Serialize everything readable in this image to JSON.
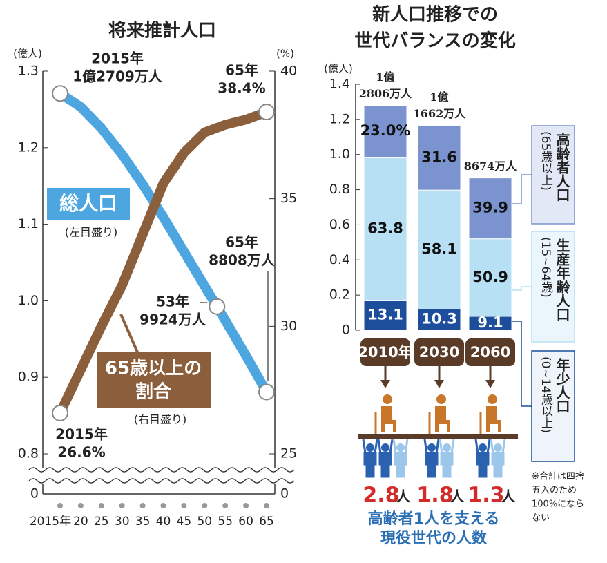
{
  "chart_data": [
    {
      "type": "line",
      "title": "将来推計人口",
      "y_unit": "(億人)",
      "y2_unit": "(%)",
      "xlim": [
        2015,
        2065
      ],
      "xticks": [
        {
          "value": 2015,
          "label": "2015年"
        },
        {
          "value": 2020,
          "label": "20"
        },
        {
          "value": 2025,
          "label": "25"
        },
        {
          "value": 2030,
          "label": "30"
        },
        {
          "value": 2035,
          "label": "35"
        },
        {
          "value": 2040,
          "label": "40"
        },
        {
          "value": 2045,
          "label": "45"
        },
        {
          "value": 2050,
          "label": "50"
        },
        {
          "value": 2055,
          "label": "55"
        },
        {
          "value": 2060,
          "label": "60"
        },
        {
          "value": 2065,
          "label": "65"
        }
      ],
      "ylim": [
        0.8,
        1.3
      ],
      "yticks": [
        0.8,
        0.9,
        {
          "value": 1,
          "label": "1.0"
        },
        1.1,
        1.2,
        1.3
      ],
      "y2lim": [
        25,
        40
      ],
      "y2ticks": [
        25,
        30,
        35,
        40
      ],
      "break_ticks": {
        "y": 0,
        "y2": 0
      },
      "series": [
        {
          "name": "総人口",
          "axis_note": "(左目盛り)",
          "color": "#4ea6e0",
          "x": [
            2015,
            2020,
            2025,
            2030,
            2035,
            2040,
            2045,
            2050,
            2053,
            2055,
            2060,
            2065
          ],
          "values": [
            1.2709,
            1.2532,
            1.2254,
            1.1913,
            1.1522,
            1.1092,
            1.0642,
            1.0192,
            0.9924,
            0.9744,
            0.9284,
            0.8808
          ]
        },
        {
          "name_lines": [
            "65歳以上の",
            "割合"
          ],
          "axis_note": "(右目盛り)",
          "axis": "y2",
          "color": "#8b5e3c",
          "x": [
            2015,
            2020,
            2025,
            2030,
            2035,
            2040,
            2045,
            2050,
            2055,
            2060,
            2065
          ],
          "values": [
            26.6,
            28.3,
            30.0,
            31.6,
            33.6,
            35.6,
            36.8,
            37.6,
            37.9,
            38.1,
            38.4
          ]
        }
      ],
      "annotations": [
        {
          "lines": [
            "2015年",
            "1億2709万人"
          ]
        },
        {
          "lines": [
            "65年",
            "38.4%"
          ]
        },
        {
          "lines": [
            "65年",
            "8808万人"
          ]
        },
        {
          "lines": [
            "53年",
            "9924万人"
          ]
        },
        {
          "lines": [
            "2015年",
            "26.6%"
          ]
        }
      ]
    },
    {
      "type": "stacked_bar",
      "title_lines": [
        "新人口推移での",
        "世代バランスの変化"
      ],
      "y_unit": "(億人)",
      "categories": [
        "2010年",
        "2030",
        "2060"
      ],
      "ylim": [
        0,
        1.4
      ],
      "yticks": [
        0,
        0.2,
        0.4,
        0.6,
        0.8,
        {
          "value": 1,
          "label": "1.0"
        },
        1.2,
        1.4
      ],
      "series": [
        {
          "name": "年少人口",
          "range": "(0~14歳以上)",
          "color": "#1c4e9c",
          "values": [
            0.1678,
            0.1201,
            0.0789
          ],
          "value_labels": [
            "13.1",
            "10.3",
            "9.1"
          ]
        },
        {
          "name": "生産年齢人口",
          "range": "(15~64歳)",
          "color": "#b8e0f5",
          "values": [
            0.817,
            0.6776,
            0.4415
          ],
          "value_labels": [
            "63.8",
            "58.1",
            "50.9"
          ]
        },
        {
          "name": "高齢者人口",
          "range": "(65歳以上)",
          "color": "#7b93cf",
          "values": [
            0.2945,
            0.3685,
            0.3461
          ],
          "value_labels": [
            "23.0%",
            "31.6",
            "39.9"
          ]
        }
      ],
      "totals": [
        1.2806,
        1.1662,
        0.8674
      ],
      "total_labels": [
        [
          "1億",
          "2806万人"
        ],
        [
          "1億",
          "1662万人"
        ],
        [
          "8674万人"
        ]
      ],
      "supporters": {
        "values": [
          2.8,
          1.8,
          1.3
        ],
        "unit": "人",
        "caption_lines": [
          "高齢者1人を支える",
          "現役世代の人数"
        ]
      },
      "note_lines": [
        "※合計は四捨",
        "五入のため",
        "100%になら",
        "ない"
      ]
    }
  ]
}
